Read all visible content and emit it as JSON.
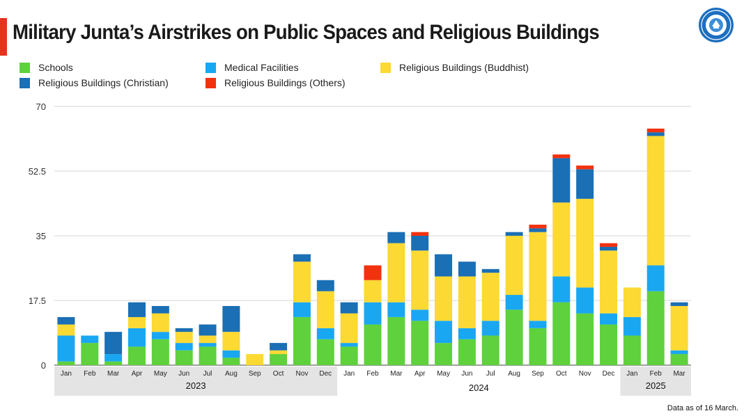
{
  "title": "Military Junta’s Airstrikes on Public Spaces and Religious Buildings",
  "logo_alt": "Ministry of Human Rights",
  "footnote": "Data as of 16 March.",
  "chart_data": {
    "type": "bar",
    "stacked": true,
    "title": "Military Junta’s Airstrikes on Public Spaces and Religious Buildings",
    "xlabel": "",
    "ylabel": "",
    "ylim": [
      0,
      70
    ],
    "yticks": [
      0,
      17.5,
      35,
      52.5,
      70
    ],
    "ytick_labels": [
      "0",
      "17.5",
      "35",
      "52.5",
      "70"
    ],
    "grid": true,
    "legend_position": "top-left",
    "categories": [
      "Jan",
      "Feb",
      "Mar",
      "Apr",
      "May",
      "Jun",
      "Jul",
      "Aug",
      "Sep",
      "Oct",
      "Nov",
      "Dec",
      "Jan",
      "Feb",
      "Mar",
      "Apr",
      "May",
      "Jun",
      "Jul",
      "Aug",
      "Sep",
      "Oct",
      "Nov",
      "Dec",
      "Jan",
      "Feb",
      "Mar"
    ],
    "groups": [
      {
        "label": "2023",
        "count": 12
      },
      {
        "label": "2024",
        "count": 12
      },
      {
        "label": "2025",
        "count": 3
      }
    ],
    "series": [
      {
        "name": "Schools",
        "color": "#5fd13c",
        "values": [
          1,
          6,
          1,
          5,
          7,
          4,
          5,
          2,
          0,
          3,
          13,
          7,
          5,
          11,
          13,
          12,
          6,
          7,
          8,
          15,
          10,
          17,
          14,
          11,
          8,
          20,
          3
        ]
      },
      {
        "name": "Medical Facilities",
        "color": "#19a7f2",
        "values": [
          7,
          2,
          2,
          5,
          2,
          2,
          1,
          2,
          0,
          0,
          4,
          3,
          1,
          6,
          4,
          3,
          6,
          3,
          4,
          4,
          2,
          7,
          7,
          3,
          5,
          7,
          1
        ]
      },
      {
        "name": "Religious Buildings (Buddhist)",
        "color": "#fcd933",
        "values": [
          3,
          0,
          0,
          3,
          5,
          3,
          2,
          5,
          3,
          1,
          11,
          10,
          8,
          6,
          16,
          16,
          12,
          14,
          13,
          16,
          24,
          20,
          24,
          17,
          8,
          35,
          12
        ]
      },
      {
        "name": "Religious Buildings (Christian)",
        "color": "#1b6fb4",
        "values": [
          2,
          0,
          6,
          4,
          2,
          1,
          3,
          7,
          0,
          2,
          2,
          3,
          3,
          0,
          3,
          4,
          6,
          4,
          1,
          1,
          1,
          12,
          8,
          1,
          0,
          1,
          1
        ]
      },
      {
        "name": "Religious Buildings (Others)",
        "color": "#f2320f",
        "values": [
          0,
          0,
          0,
          0,
          0,
          0,
          0,
          0,
          0,
          0,
          0,
          0,
          0,
          4,
          0,
          1,
          0,
          0,
          0,
          0,
          1,
          1,
          1,
          1,
          0,
          1,
          0
        ]
      }
    ]
  }
}
